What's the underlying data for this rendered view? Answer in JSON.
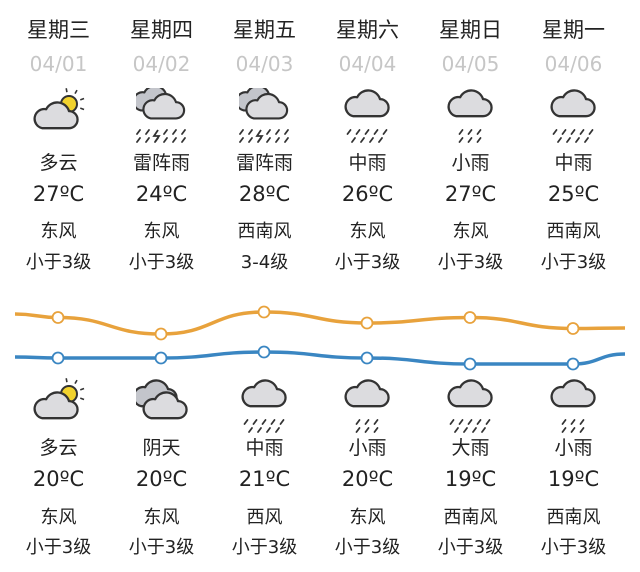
{
  "colors": {
    "high": "#e8a23c",
    "low": "#3a86c2",
    "date": "#c6c6c6",
    "cloud": "#dcdcdf",
    "sun": "#f2d32e"
  },
  "days": [
    {
      "weekday": "星期三",
      "date": "04/01",
      "day": {
        "icon": "partly-cloudy-icon",
        "weather": "多云",
        "temp": "27ºC",
        "high": 27,
        "wind": "东风",
        "level": "小于3级"
      },
      "night": {
        "icon": "partly-cloudy-icon",
        "weather": "多云",
        "temp": "20ºC",
        "low": 20,
        "wind": "东风",
        "level": "小于3级"
      }
    },
    {
      "weekday": "星期四",
      "date": "04/02",
      "day": {
        "icon": "thunderstorm-icon",
        "weather": "雷阵雨",
        "temp": "24ºC",
        "high": 24,
        "wind": "东风",
        "level": "小于3级"
      },
      "night": {
        "icon": "overcast-icon",
        "weather": "阴天",
        "temp": "20ºC",
        "low": 20,
        "wind": "东风",
        "level": "小于3级"
      }
    },
    {
      "weekday": "星期五",
      "date": "04/03",
      "day": {
        "icon": "thunderstorm-icon",
        "weather": "雷阵雨",
        "temp": "28ºC",
        "high": 28,
        "wind": "西南风",
        "level": "3-4级"
      },
      "night": {
        "icon": "moderate-rain-icon",
        "weather": "中雨",
        "temp": "21ºC",
        "low": 21,
        "wind": "西风",
        "level": "小于3级"
      }
    },
    {
      "weekday": "星期六",
      "date": "04/04",
      "day": {
        "icon": "moderate-rain-icon",
        "weather": "中雨",
        "temp": "26ºC",
        "high": 26,
        "wind": "东风",
        "level": "小于3级"
      },
      "night": {
        "icon": "light-rain-icon",
        "weather": "小雨",
        "temp": "20ºC",
        "low": 20,
        "wind": "东风",
        "level": "小于3级"
      }
    },
    {
      "weekday": "星期日",
      "date": "04/05",
      "day": {
        "icon": "light-rain-icon",
        "weather": "小雨",
        "temp": "27ºC",
        "high": 27,
        "wind": "东风",
        "level": "小于3级"
      },
      "night": {
        "icon": "heavy-rain-icon",
        "weather": "大雨",
        "temp": "19ºC",
        "low": 19,
        "wind": "西南风",
        "level": "小于3级"
      }
    },
    {
      "weekday": "星期一",
      "date": "04/06",
      "day": {
        "icon": "moderate-rain-icon",
        "weather": "中雨",
        "temp": "25ºC",
        "high": 25,
        "wind": "西南风",
        "level": "小于3级"
      },
      "night": {
        "icon": "light-rain-icon",
        "weather": "小雨",
        "temp": "19ºC",
        "low": 19,
        "wind": "西南风",
        "level": "小于3级"
      }
    }
  ]
}
